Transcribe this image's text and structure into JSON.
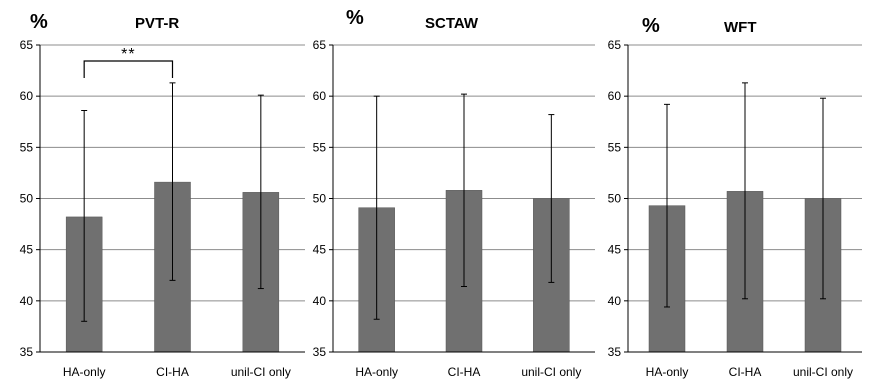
{
  "chart_data": [
    {
      "type": "bar",
      "title": "PVT-R",
      "ylabel": "%",
      "ylim": [
        35,
        65
      ],
      "yticks": [
        "35",
        "40",
        "45",
        "50",
        "55",
        "60",
        "65"
      ],
      "categories": [
        "HA-only",
        "CI-HA",
        "unil-CI only"
      ],
      "values": [
        48.2,
        51.6,
        50.6
      ],
      "error_low": [
        38.0,
        42.0,
        41.2
      ],
      "error_high": [
        58.6,
        61.3,
        60.1
      ],
      "annotation": {
        "text": "**",
        "between": [
          0,
          1
        ]
      },
      "grid": true,
      "bar_color": "#707070"
    },
    {
      "type": "bar",
      "title": "SCTAW",
      "ylabel": "%",
      "ylim": [
        35,
        65
      ],
      "yticks": [
        "35",
        "40",
        "45",
        "50",
        "55",
        "60",
        "65"
      ],
      "categories": [
        "HA-only",
        "CI-HA",
        "unil-CI only"
      ],
      "values": [
        49.1,
        50.8,
        50.0
      ],
      "error_low": [
        38.2,
        41.4,
        41.8
      ],
      "error_high": [
        60.0,
        60.2,
        58.2
      ],
      "grid": true,
      "bar_color": "#707070"
    },
    {
      "type": "bar",
      "title": "WFT",
      "ylabel": "%",
      "ylim": [
        35,
        65
      ],
      "yticks": [
        "35",
        "40",
        "45",
        "50",
        "55",
        "60",
        "65"
      ],
      "categories": [
        "HA-only",
        "CI-HA",
        "unil-CI only"
      ],
      "values": [
        49.3,
        50.7,
        50.0
      ],
      "error_low": [
        39.4,
        40.2,
        40.2
      ],
      "error_high": [
        59.2,
        61.3,
        59.8
      ],
      "grid": true,
      "bar_color": "#707070"
    }
  ]
}
